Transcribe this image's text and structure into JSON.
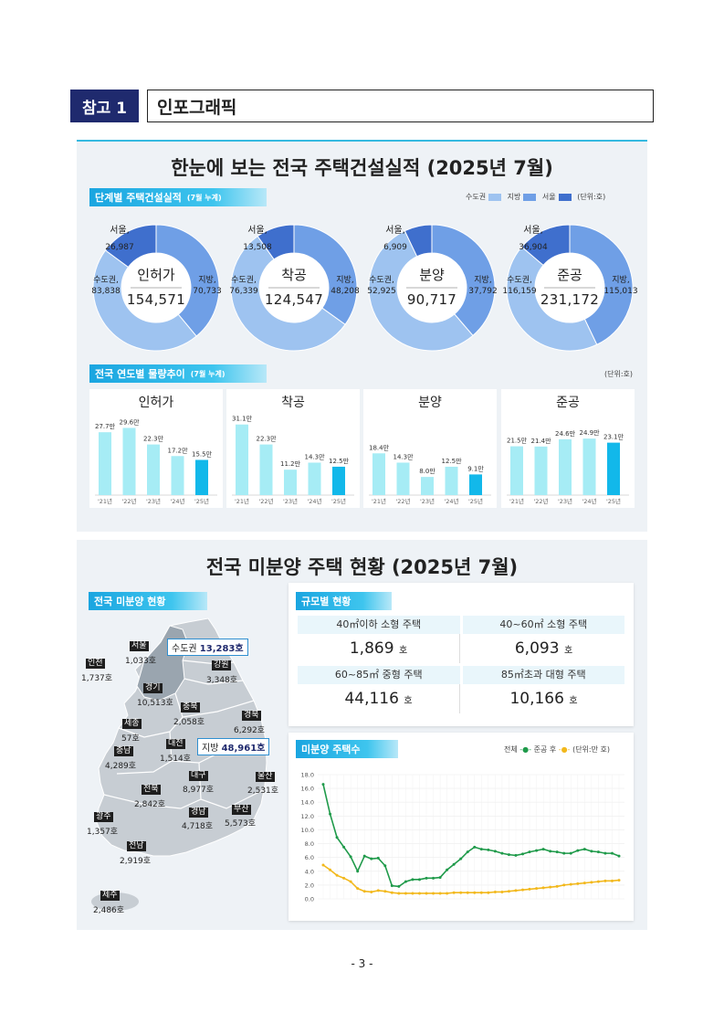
{
  "header": {
    "ref_label": "참고 1",
    "title": "인포그래픽"
  },
  "section1": {
    "title": "한눈에 보는 전국 주택건설실적 (2025년 7월)",
    "tag1": {
      "label": "단계별 주택건설실적",
      "note": "(7월 누계)"
    },
    "legend": {
      "items": [
        "수도권",
        "지방",
        "서울"
      ],
      "unit": "(단위:호)",
      "colors": [
        "#9ec3f0",
        "#6f9fe6",
        "#3f6fcd"
      ]
    },
    "donuts": [
      {
        "name": "인허가",
        "total": "154,571",
        "seoul_label": "서울,",
        "seoul": "26,987",
        "metro_label": "수도권,",
        "metro": "83,838",
        "local_label": "지방,",
        "local": "70,733"
      },
      {
        "name": "착공",
        "total": "124,547",
        "seoul_label": "서울,",
        "seoul": "13,508",
        "metro_label": "수도권,",
        "metro": "76,339",
        "local_label": "지방,",
        "local": "48,208"
      },
      {
        "name": "분양",
        "total": "90,717",
        "seoul_label": "서울,",
        "seoul": "6,909",
        "metro_label": "수도권,",
        "metro": "52,925",
        "local_label": "지방,",
        "local": "37,792"
      },
      {
        "name": "준공",
        "total": "231,172",
        "seoul_label": "서울,",
        "seoul": "36,904",
        "metro_label": "수도권,",
        "metro": "116,159",
        "local_label": "지방,",
        "local": "115,013"
      }
    ],
    "tag2": {
      "label": "전국 연도별 물량추이",
      "note": "(7월 누계)"
    },
    "unit2": "(단위:호)",
    "bar_charts": [
      {
        "title": "인허가",
        "categories": [
          "'21년",
          "'22년",
          "'23년",
          "'24년",
          "'25년"
        ],
        "values": [
          27.7,
          29.6,
          22.3,
          17.2,
          15.5
        ],
        "labels": [
          "27.7만",
          "29.6만",
          "22.3만",
          "17.2만",
          "15.5만"
        ]
      },
      {
        "title": "착공",
        "categories": [
          "'21년",
          "'22년",
          "'23년",
          "'24년",
          "'25년"
        ],
        "values": [
          31.1,
          22.3,
          11.2,
          14.3,
          12.5
        ],
        "labels": [
          "31.1만",
          "22.3만",
          "11.2만",
          "14.3만",
          "12.5만"
        ]
      },
      {
        "title": "분양",
        "categories": [
          "'21년",
          "'22년",
          "'23년",
          "'24년",
          "'25년"
        ],
        "values": [
          18.4,
          14.3,
          8.0,
          12.5,
          9.1
        ],
        "labels": [
          "18.4만",
          "14.3만",
          "8.0만",
          "12.5만",
          "9.1만"
        ]
      },
      {
        "title": "준공",
        "categories": [
          "'21년",
          "'22년",
          "'23년",
          "'24년",
          "'25년"
        ],
        "values": [
          21.5,
          21.4,
          24.6,
          24.9,
          23.1
        ],
        "labels": [
          "21.5만",
          "21.4만",
          "24.6만",
          "24.9만",
          "23.1만"
        ]
      }
    ]
  },
  "section2": {
    "title": "전국 미분양 주택 현황 (2025년 7월)",
    "map_tag": "전국 미분양 현황",
    "metro_box": {
      "label": "수도권",
      "value": "13,283호"
    },
    "local_box": {
      "label": "지방",
      "value": "48,961호"
    },
    "regions": [
      {
        "name": "서울",
        "value": "1,033호"
      },
      {
        "name": "인천",
        "value": "1,737호"
      },
      {
        "name": "경기",
        "value": "10,513호"
      },
      {
        "name": "강원",
        "value": "3,348호"
      },
      {
        "name": "충북",
        "value": "2,058호"
      },
      {
        "name": "경북",
        "value": "6,292호"
      },
      {
        "name": "세종",
        "value": "57호"
      },
      {
        "name": "대전",
        "value": "1,514호"
      },
      {
        "name": "충남",
        "value": "4,289호"
      },
      {
        "name": "대구",
        "value": "8,977호"
      },
      {
        "name": "울산",
        "value": "2,531호"
      },
      {
        "name": "전북",
        "value": "2,842호"
      },
      {
        "name": "광주",
        "value": "1,357호"
      },
      {
        "name": "경남",
        "value": "4,718호"
      },
      {
        "name": "부산",
        "value": "5,573호"
      },
      {
        "name": "전남",
        "value": "2,919호"
      },
      {
        "name": "제주",
        "value": "2,486호"
      }
    ],
    "size_tag": "규모별 현황",
    "size_table": [
      {
        "label": "40㎡이하 소형 주택",
        "value": "1,869",
        "unit": "호"
      },
      {
        "label": "40~60㎡ 소형 주택",
        "value": "6,093",
        "unit": "호"
      },
      {
        "label": "60~85㎡ 중형 주택",
        "value": "44,116",
        "unit": "호"
      },
      {
        "label": "85㎡초과 대형 주택",
        "value": "10,166",
        "unit": "호"
      }
    ],
    "line_tag": "미분양 주택수",
    "line_legend": {
      "total": "전체",
      "after": "준공 후",
      "unit": "(단위:만 호)"
    },
    "line_colors": {
      "total": "#1f9a4a",
      "after": "#f2b81c"
    }
  },
  "chart_data": [
    {
      "type": "pie",
      "title": "인허가",
      "categories": [
        "수도권",
        "지방",
        "서울"
      ],
      "values": [
        83838,
        70733,
        26987
      ],
      "total": 154571
    },
    {
      "type": "pie",
      "title": "착공",
      "categories": [
        "수도권",
        "지방",
        "서울"
      ],
      "values": [
        76339,
        48208,
        13508
      ],
      "total": 124547
    },
    {
      "type": "pie",
      "title": "분양",
      "categories": [
        "수도권",
        "지방",
        "서울"
      ],
      "values": [
        52925,
        37792,
        6909
      ],
      "total": 90717
    },
    {
      "type": "pie",
      "title": "준공",
      "categories": [
        "수도권",
        "지방",
        "서울"
      ],
      "values": [
        116159,
        115013,
        36904
      ],
      "total": 231172
    },
    {
      "type": "line",
      "ylim": [
        0,
        18
      ],
      "yticks": [
        0.0,
        2.0,
        4.0,
        6.0,
        8.0,
        10.0,
        12.0,
        14.0,
        16.0,
        18.0
      ],
      "series": [
        {
          "name": "전체",
          "values": [
            16.6,
            12.3,
            8.9,
            7.5,
            6.1,
            4.0,
            6.2,
            5.8,
            5.9,
            4.8,
            1.9,
            1.8,
            2.5,
            2.8,
            2.8,
            3.0,
            3.0,
            3.1,
            4.2,
            5.0,
            5.8,
            6.8,
            7.5,
            7.2,
            7.1,
            6.9,
            6.6,
            6.4,
            6.3,
            6.5,
            6.8,
            7.0,
            7.2,
            6.9,
            6.8,
            6.6,
            6.6,
            7.0,
            7.2,
            6.9,
            6.8,
            6.6,
            6.6,
            6.2
          ]
        },
        {
          "name": "준공 후",
          "values": [
            4.9,
            4.2,
            3.4,
            3.0,
            2.5,
            1.5,
            1.1,
            1.0,
            1.2,
            1.1,
            0.9,
            0.8,
            0.8,
            0.8,
            0.8,
            0.8,
            0.8,
            0.8,
            0.8,
            0.9,
            0.9,
            0.9,
            0.9,
            0.9,
            0.9,
            1.0,
            1.0,
            1.1,
            1.2,
            1.3,
            1.4,
            1.5,
            1.6,
            1.7,
            1.8,
            2.0,
            2.1,
            2.2,
            2.3,
            2.4,
            2.5,
            2.6,
            2.6,
            2.7
          ]
        }
      ]
    }
  ]
}
